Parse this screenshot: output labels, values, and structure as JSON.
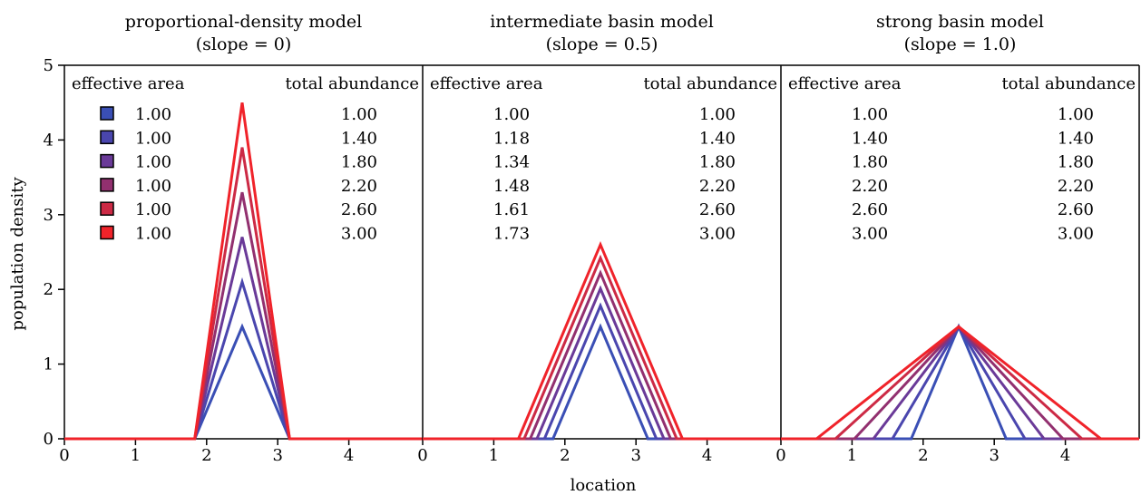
{
  "chart_data": {
    "type": "line",
    "ylabel": "population density",
    "xlabel": "location",
    "ylim": [
      0,
      5
    ],
    "yticks": [
      "0",
      "1",
      "2",
      "3",
      "4",
      "5"
    ],
    "xlim": [
      0,
      5
    ],
    "xticks": [
      "0",
      "1",
      "2",
      "3",
      "4"
    ],
    "series_colors": [
      "#3a4fb5",
      "#4a46ae",
      "#6a3a98",
      "#92306f",
      "#cc2a45",
      "#f0232a"
    ],
    "panels": [
      {
        "title_line1": "proportional-density model",
        "title_line2": "(slope = 0)",
        "col1_header": "effective area",
        "col2_header": "total abundance",
        "show_swatches": true,
        "effective_area": [
          "1.00",
          "1.00",
          "1.00",
          "1.00",
          "1.00",
          "1.00"
        ],
        "total_abundance": [
          "1.00",
          "1.40",
          "1.80",
          "2.20",
          "2.60",
          "3.00"
        ],
        "peak_x": 2.5,
        "peak_density": [
          1.5,
          2.1,
          2.7,
          3.3,
          3.9,
          4.5
        ],
        "half_width": [
          0.667,
          0.667,
          0.667,
          0.667,
          0.667,
          0.667
        ]
      },
      {
        "title_line1": "intermediate basin model",
        "title_line2": "(slope = 0.5)",
        "col1_header": "effective area",
        "col2_header": "total abundance",
        "show_swatches": false,
        "effective_area": [
          "1.00",
          "1.18",
          "1.34",
          "1.48",
          "1.61",
          "1.73"
        ],
        "total_abundance": [
          "1.00",
          "1.40",
          "1.80",
          "2.20",
          "2.60",
          "3.00"
        ],
        "peak_x": 2.5,
        "peak_density": [
          1.5,
          1.78,
          2.01,
          2.22,
          2.42,
          2.6
        ],
        "half_width": [
          0.667,
          0.787,
          0.893,
          0.987,
          1.073,
          1.153
        ]
      },
      {
        "title_line1": "strong basin model",
        "title_line2": "(slope = 1.0)",
        "col1_header": "effective area",
        "col2_header": "total abundance",
        "show_swatches": false,
        "effective_area": [
          "1.00",
          "1.40",
          "1.80",
          "2.20",
          "2.60",
          "3.00"
        ],
        "total_abundance": [
          "1.00",
          "1.40",
          "1.80",
          "2.20",
          "2.60",
          "3.00"
        ],
        "peak_x": 2.5,
        "peak_density": [
          1.5,
          1.5,
          1.5,
          1.5,
          1.5,
          1.5
        ],
        "half_width": [
          0.667,
          0.933,
          1.2,
          1.467,
          1.733,
          2.0
        ]
      }
    ]
  }
}
